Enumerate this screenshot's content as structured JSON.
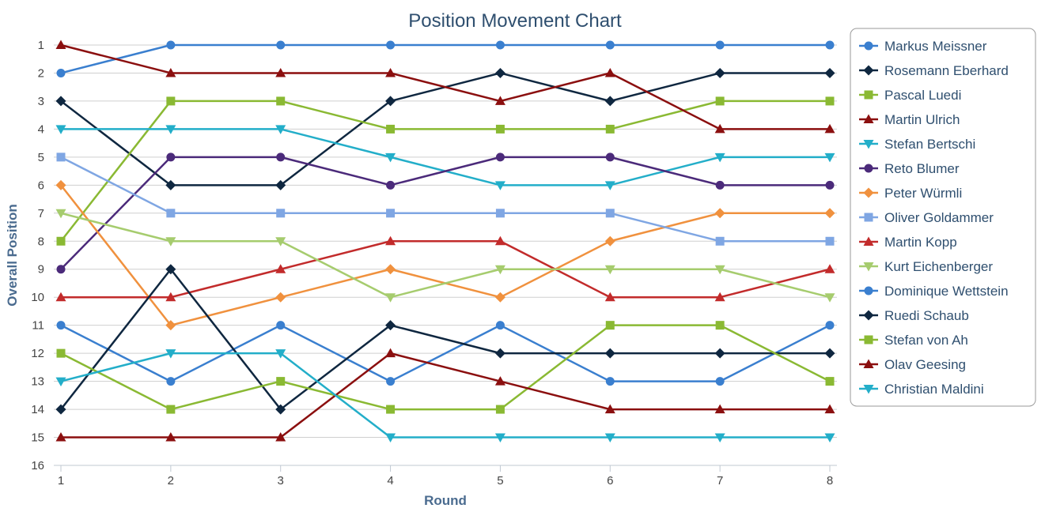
{
  "chart_data": {
    "type": "line",
    "title": "Position Movement Chart",
    "xlabel": "Round",
    "ylabel": "Overall Position",
    "x": [
      1,
      2,
      3,
      4,
      5,
      6,
      7,
      8
    ],
    "ylim": [
      1,
      16
    ],
    "y_reversed": true,
    "y_ticks": [
      1,
      2,
      3,
      4,
      5,
      6,
      7,
      8,
      9,
      10,
      11,
      12,
      13,
      14,
      15,
      16
    ],
    "grid": true,
    "legend": "right",
    "series": [
      {
        "name": "Markus Meissner",
        "color": "#3a7fcf",
        "marker": "circle",
        "values": [
          2,
          1,
          1,
          1,
          1,
          1,
          1,
          1
        ]
      },
      {
        "name": "Rosemann Eberhard",
        "color": "#0f2740",
        "marker": "diamond",
        "values": [
          3,
          6,
          6,
          3,
          2,
          3,
          2,
          2
        ]
      },
      {
        "name": "Pascal Luedi",
        "color": "#8ab933",
        "marker": "square",
        "values": [
          8,
          3,
          3,
          4,
          4,
          4,
          3,
          3
        ]
      },
      {
        "name": "Martin Ulrich",
        "color": "#8b0f0f",
        "marker": "triangle",
        "values": [
          1,
          2,
          2,
          2,
          3,
          2,
          4,
          4
        ]
      },
      {
        "name": "Stefan Bertschi",
        "color": "#23aec9",
        "marker": "triangle-down",
        "values": [
          4,
          4,
          4,
          5,
          6,
          6,
          5,
          5
        ]
      },
      {
        "name": "Reto Blumer",
        "color": "#4b2a7a",
        "marker": "circle",
        "values": [
          9,
          5,
          5,
          6,
          5,
          5,
          6,
          6
        ]
      },
      {
        "name": "Peter Würmli",
        "color": "#f0913e",
        "marker": "diamond",
        "values": [
          6,
          11,
          10,
          9,
          10,
          8,
          7,
          7
        ]
      },
      {
        "name": "Oliver Goldammer",
        "color": "#7fa6e3",
        "marker": "square",
        "values": [
          5,
          7,
          7,
          7,
          7,
          7,
          8,
          8
        ]
      },
      {
        "name": "Martin Kopp",
        "color": "#c22b2b",
        "marker": "triangle",
        "values": [
          10,
          10,
          9,
          8,
          8,
          10,
          10,
          9
        ]
      },
      {
        "name": "Kurt Eichenberger",
        "color": "#a6cc6e",
        "marker": "triangle-down",
        "values": [
          7,
          8,
          8,
          10,
          9,
          9,
          9,
          10
        ]
      },
      {
        "name": "Dominique Wettstein",
        "color": "#3a7fcf",
        "marker": "circle",
        "values": [
          11,
          13,
          11,
          13,
          11,
          13,
          13,
          11
        ]
      },
      {
        "name": "Ruedi Schaub",
        "color": "#0f2740",
        "marker": "diamond",
        "values": [
          14,
          9,
          14,
          11,
          12,
          12,
          12,
          12
        ]
      },
      {
        "name": "Stefan von Ah",
        "color": "#8ab933",
        "marker": "square",
        "values": [
          12,
          14,
          13,
          14,
          14,
          11,
          11,
          13
        ]
      },
      {
        "name": "Olav Geesing",
        "color": "#8b0f0f",
        "marker": "triangle",
        "values": [
          15,
          15,
          15,
          12,
          13,
          14,
          14,
          14
        ]
      },
      {
        "name": "Christian Maldini",
        "color": "#23aec9",
        "marker": "triangle-down",
        "values": [
          13,
          12,
          12,
          15,
          15,
          15,
          15,
          15
        ]
      }
    ]
  }
}
